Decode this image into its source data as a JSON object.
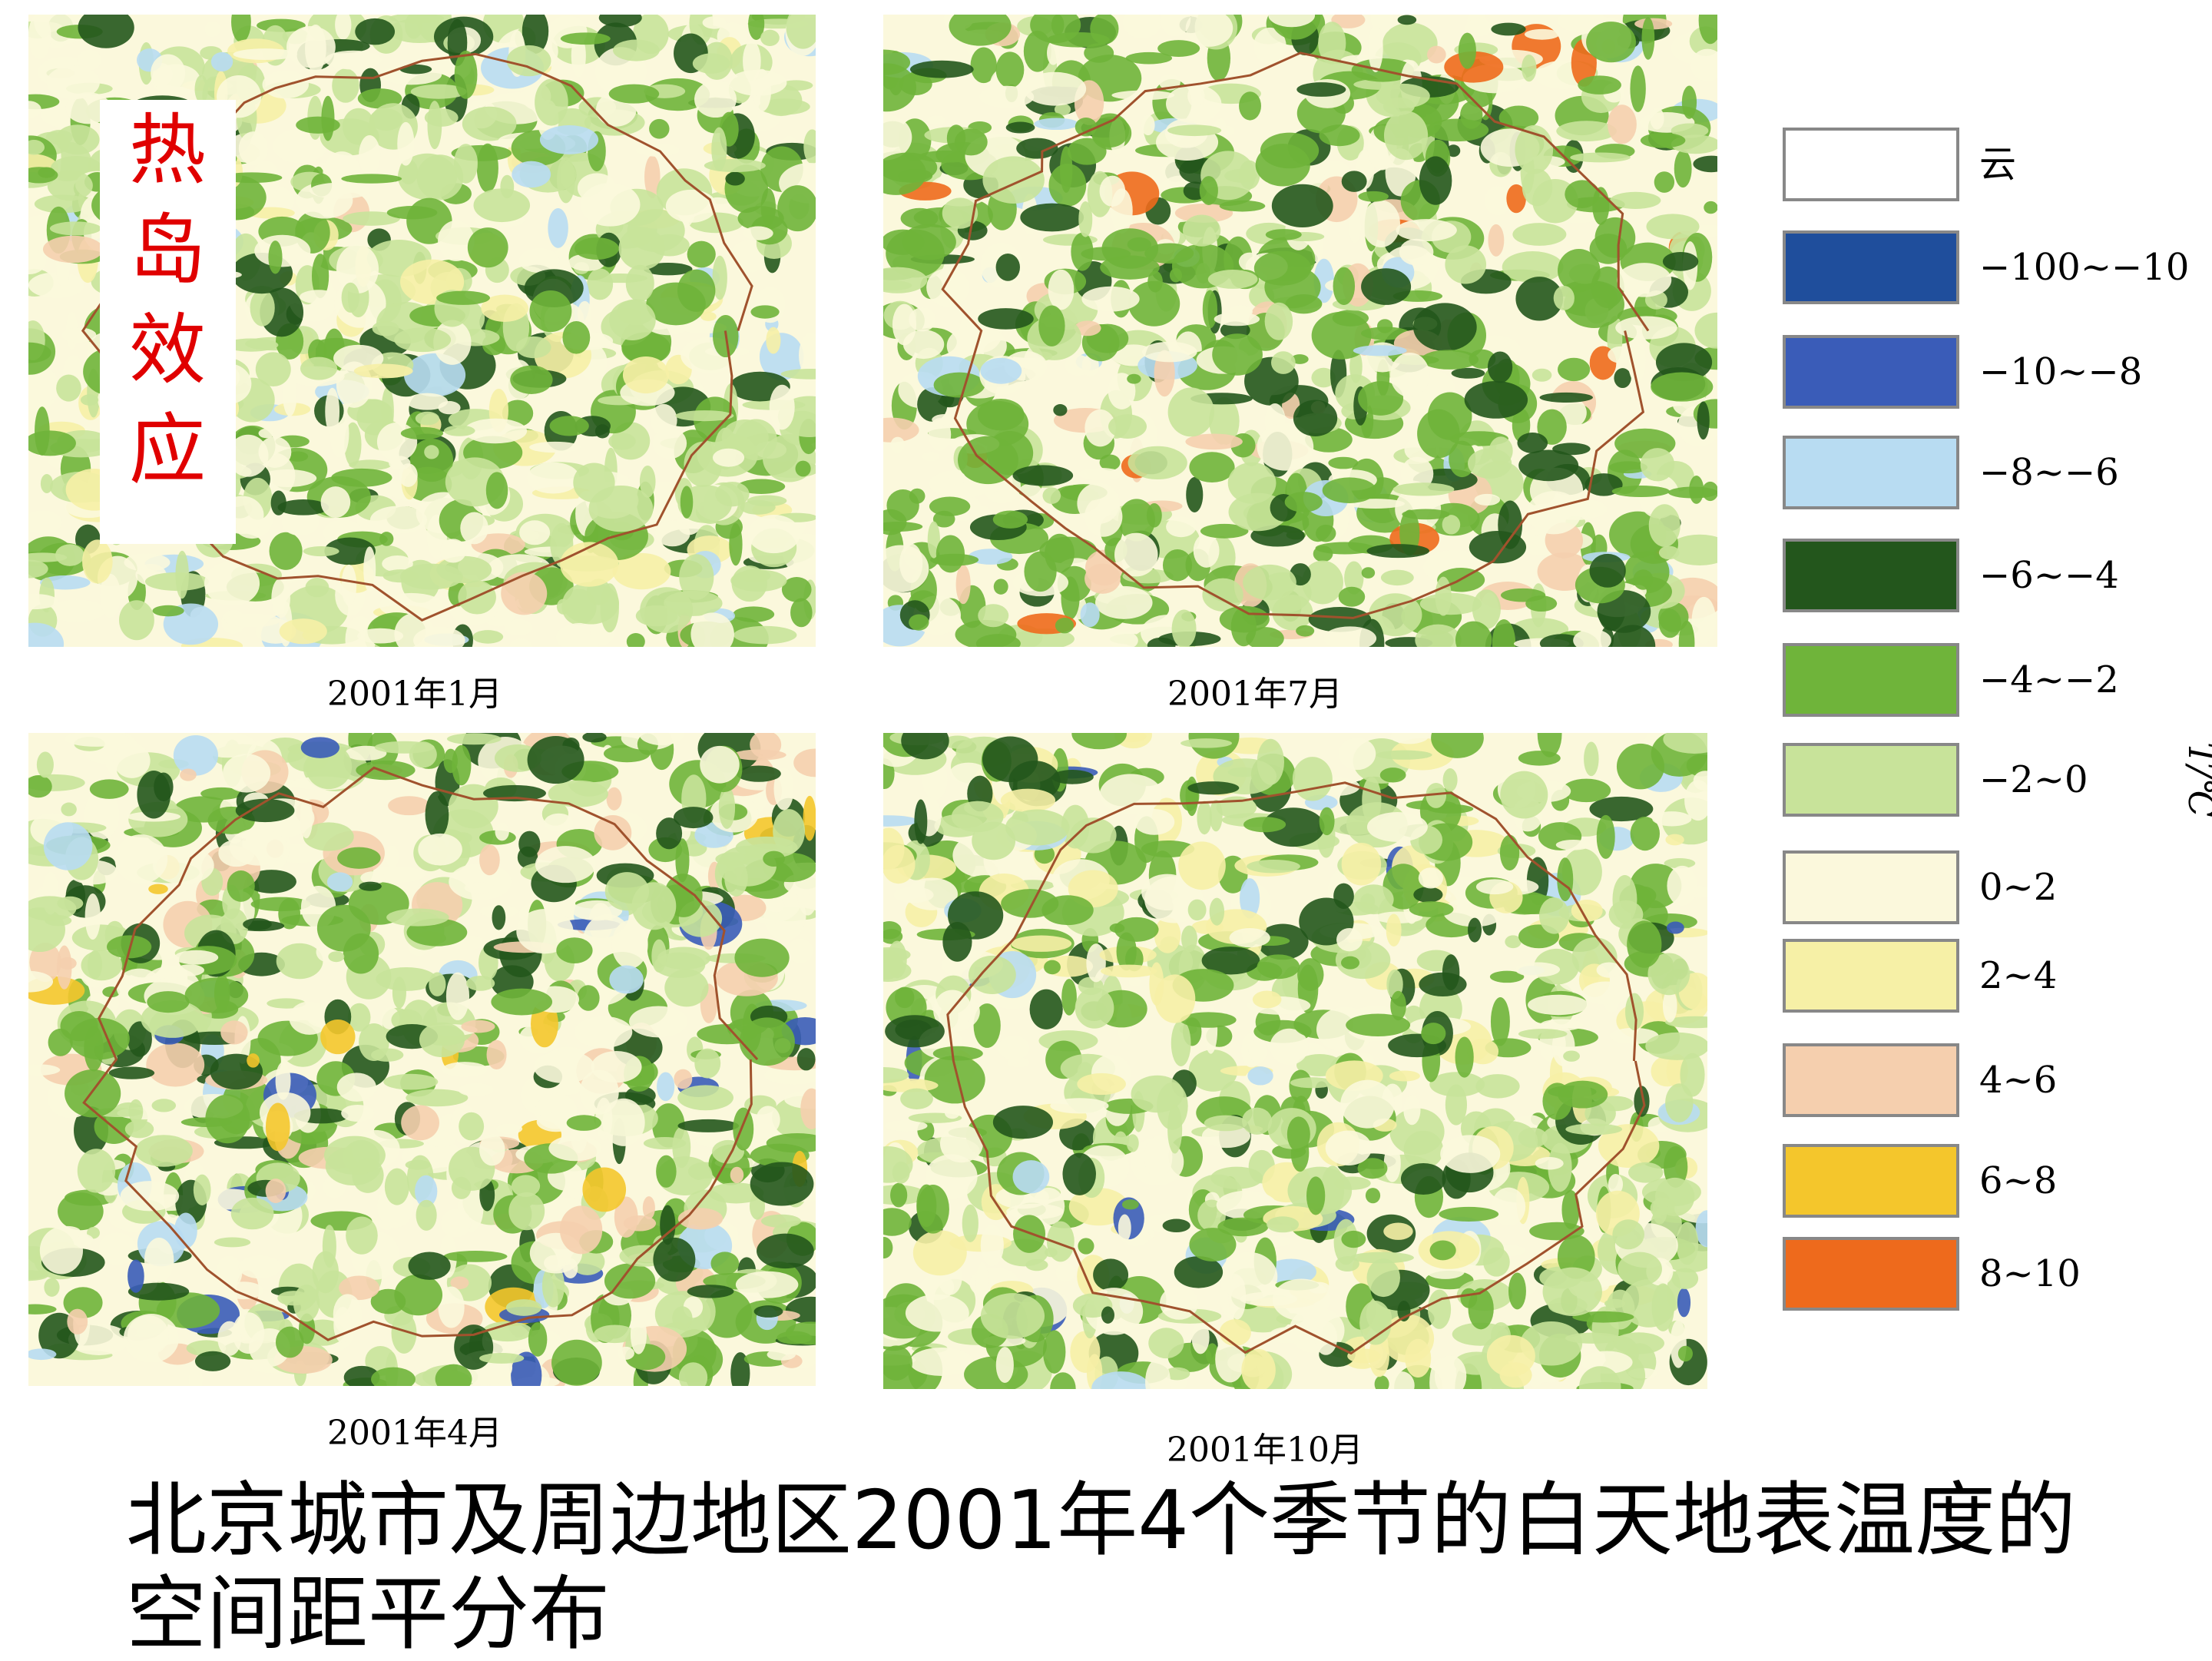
{
  "side_label": "热岛效应",
  "maps": [
    {
      "caption": "2001年1月"
    },
    {
      "caption": "2001年7月"
    },
    {
      "caption": "2001年4月"
    },
    {
      "caption": "2001年10月"
    }
  ],
  "legend": {
    "unit": "T/℃",
    "items": [
      {
        "label": "云",
        "color": "#ffffff"
      },
      {
        "label": "−100~−10",
        "color": "#1f4e9c"
      },
      {
        "label": "−10~−8",
        "color": "#3a5cb8"
      },
      {
        "label": "−8~−6",
        "color": "#b8dcf2"
      },
      {
        "label": "−6~−4",
        "color": "#23561c"
      },
      {
        "label": "−4~−2",
        "color": "#6fb43a"
      },
      {
        "label": "−2~0",
        "color": "#c8e39a"
      },
      {
        "label": "0~2",
        "color": "#fbf8dc"
      },
      {
        "label": "2~4",
        "color": "#f6f0a6"
      },
      {
        "label": "4~6",
        "color": "#f5cfae"
      },
      {
        "label": "6~8",
        "color": "#f4c62c"
      },
      {
        "label": "8~10",
        "color": "#ee6a1c"
      }
    ]
  },
  "caption": "北京城市及周边地区2001年4个季节的白天地表温度的空间距平分布"
}
